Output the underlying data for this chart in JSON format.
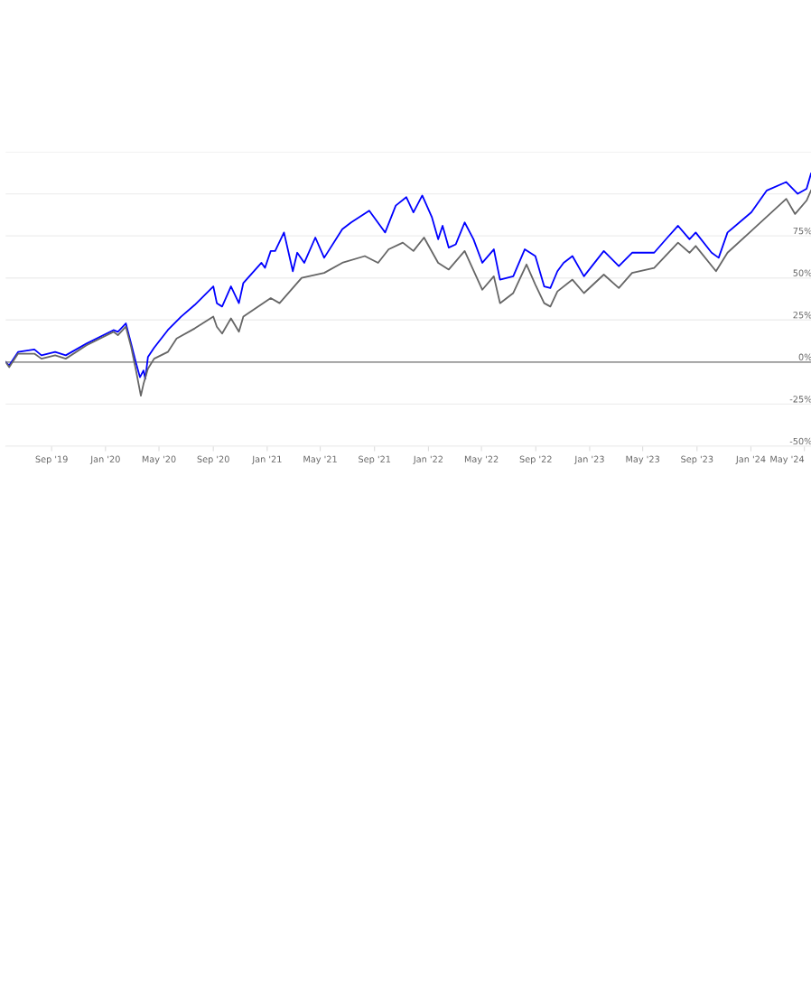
{
  "chart_data": {
    "type": "line",
    "xlim": [
      "2019-05-20",
      "2024-05-16"
    ],
    "ylim": [
      -50,
      125
    ],
    "yticks": [
      {
        "value": -50,
        "label": "-50%"
      },
      {
        "value": -25,
        "label": "-25%"
      },
      {
        "value": 0,
        "label": "0%"
      },
      {
        "value": 25,
        "label": "25%"
      },
      {
        "value": 50,
        "label": "50%"
      },
      {
        "value": 75,
        "label": "75%"
      },
      {
        "value": 100,
        "label": null
      },
      {
        "value": 125,
        "label": null
      }
    ],
    "xticks": [
      {
        "value": "2019-09-01",
        "label": "Sep '19"
      },
      {
        "value": "2020-01-01",
        "label": "Jan '20"
      },
      {
        "value": "2020-05-01",
        "label": "May '20"
      },
      {
        "value": "2020-09-01",
        "label": "Sep '20"
      },
      {
        "value": "2021-01-01",
        "label": "Jan '21"
      },
      {
        "value": "2021-05-01",
        "label": "May '21"
      },
      {
        "value": "2021-09-01",
        "label": "Sep '21"
      },
      {
        "value": "2022-01-01",
        "label": "Jan '22"
      },
      {
        "value": "2022-05-01",
        "label": "May '22"
      },
      {
        "value": "2022-09-01",
        "label": "Sep '22"
      },
      {
        "value": "2023-01-01",
        "label": "Jan '23"
      },
      {
        "value": "2023-05-01",
        "label": "May '23"
      },
      {
        "value": "2023-09-01",
        "label": "Sep '23"
      },
      {
        "value": "2024-01-01",
        "label": "Jan '24"
      },
      {
        "value": "2024-05-01",
        "label": "May '24"
      }
    ],
    "grid": "y",
    "line_style": "solid",
    "marker": "none",
    "ref_lines": [
      {
        "axis": "y",
        "value": 0,
        "color": "#999999"
      }
    ],
    "series": [
      {
        "color": "#0000ff",
        "x": [
          "2019-05-20",
          "2019-05-28",
          "2019-06-17",
          "2019-07-24",
          "2019-08-09",
          "2019-09-09",
          "2019-10-03",
          "2019-11-19",
          "2020-01-19",
          "2020-01-29",
          "2020-02-16",
          "2020-02-28",
          "2020-03-10",
          "2020-03-19",
          "2020-03-27",
          "2020-03-31",
          "2020-04-06",
          "2020-04-20",
          "2020-05-21",
          "2020-06-20",
          "2020-07-21",
          "2020-09-01",
          "2020-09-09",
          "2020-09-21",
          "2020-10-11",
          "2020-10-29",
          "2020-11-08",
          "2020-12-19",
          "2020-12-27",
          "2021-01-09",
          "2021-01-19",
          "2021-02-08",
          "2021-02-28",
          "2021-03-10",
          "2021-03-26",
          "2021-04-20",
          "2021-05-10",
          "2021-06-20",
          "2021-07-10",
          "2021-08-20",
          "2021-09-25",
          "2021-10-19",
          "2021-11-12",
          "2021-11-28",
          "2021-12-18",
          "2022-01-09",
          "2022-01-23",
          "2022-02-02",
          "2022-02-16",
          "2022-03-04",
          "2022-03-24",
          "2022-04-13",
          "2022-05-03",
          "2022-05-29",
          "2022-06-12",
          "2022-07-12",
          "2022-08-07",
          "2022-08-31",
          "2022-09-20",
          "2022-10-04",
          "2022-10-20",
          "2022-11-03",
          "2022-11-23",
          "2022-12-19",
          "2023-02-02",
          "2023-03-08",
          "2023-04-07",
          "2023-05-27",
          "2023-06-26",
          "2023-07-20",
          "2023-08-15",
          "2023-08-29",
          "2023-10-04",
          "2023-10-20",
          "2023-11-09",
          "2024-01-02",
          "2024-02-06",
          "2024-03-21",
          "2024-04-16",
          "2024-05-06",
          "2024-05-16"
        ],
        "values": [
          0,
          -2,
          6,
          7.5,
          4,
          6,
          4,
          11,
          19,
          18,
          23,
          11,
          -0.5,
          -9,
          -5,
          -10,
          3,
          8.5,
          19,
          27,
          34,
          45,
          35,
          33,
          45,
          35,
          47,
          59,
          56,
          66,
          66,
          77,
          54,
          65,
          59,
          74,
          62,
          79,
          83,
          90,
          77,
          93,
          98,
          89,
          99,
          86,
          73,
          81,
          68,
          70,
          83,
          73,
          59,
          67,
          49,
          51,
          67,
          63,
          45,
          44,
          54,
          59,
          63,
          51,
          66,
          57,
          65,
          65,
          74,
          81,
          73,
          77,
          65,
          62,
          77,
          89,
          102,
          107,
          100,
          103,
          112
        ]
      },
      {
        "color": "#666666",
        "x": [
          "2019-05-20",
          "2019-05-28",
          "2019-06-17",
          "2019-07-24",
          "2019-08-09",
          "2019-09-09",
          "2019-10-03",
          "2019-11-19",
          "2020-01-19",
          "2020-01-29",
          "2020-02-16",
          "2020-02-28",
          "2020-03-10",
          "2020-03-21",
          "2020-03-27",
          "2020-04-06",
          "2020-04-20",
          "2020-05-21",
          "2020-06-10",
          "2020-07-21",
          "2020-09-01",
          "2020-09-09",
          "2020-09-21",
          "2020-10-11",
          "2020-10-29",
          "2020-11-08",
          "2021-01-09",
          "2021-01-29",
          "2021-03-20",
          "2021-05-10",
          "2021-06-20",
          "2021-08-10",
          "2021-09-09",
          "2021-10-03",
          "2021-11-04",
          "2021-11-28",
          "2021-12-22",
          "2022-01-23",
          "2022-02-16",
          "2022-03-24",
          "2022-05-03",
          "2022-05-29",
          "2022-06-12",
          "2022-07-12",
          "2022-08-11",
          "2022-08-31",
          "2022-09-20",
          "2022-10-04",
          "2022-10-20",
          "2022-11-23",
          "2022-12-19",
          "2023-02-02",
          "2023-03-08",
          "2023-04-07",
          "2023-05-27",
          "2023-07-20",
          "2023-08-15",
          "2023-08-29",
          "2023-10-14",
          "2023-11-09",
          "2024-01-02",
          "2024-03-21",
          "2024-04-10",
          "2024-05-06",
          "2024-05-16"
        ],
        "values": [
          0,
          -3,
          5,
          5,
          2,
          4,
          2,
          10,
          18,
          16,
          21,
          9,
          -5,
          -20,
          -13,
          -4,
          2,
          6,
          14,
          20,
          27,
          21,
          17,
          26,
          18,
          27,
          38,
          35,
          50,
          53,
          59,
          63,
          59,
          67,
          71,
          66,
          74,
          59,
          55,
          66,
          43,
          51,
          35,
          41,
          58,
          46,
          35,
          33,
          42,
          49,
          41,
          52,
          44,
          53,
          56,
          71,
          65,
          69,
          54,
          65,
          78,
          97,
          88,
          96,
          102
        ]
      }
    ]
  }
}
